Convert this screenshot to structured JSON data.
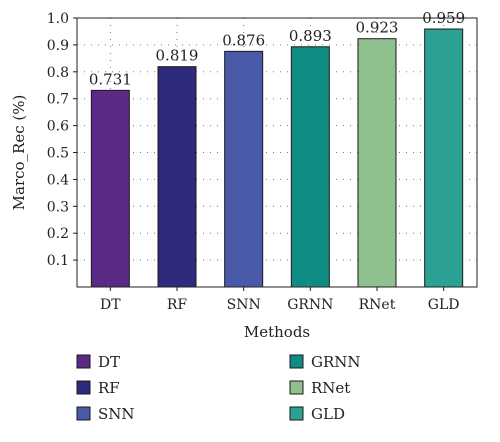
{
  "chart_data": {
    "type": "bar",
    "categories": [
      "DT",
      "RF",
      "SNN",
      "GRNN",
      "RNet",
      "GLD"
    ],
    "values": [
      0.731,
      0.819,
      0.876,
      0.893,
      0.923,
      0.959
    ],
    "value_labels": [
      "0.731",
      "0.819",
      "0.876",
      "0.893",
      "0.923",
      "0.959"
    ],
    "colors": [
      "#5b2a86",
      "#2e2a7c",
      "#4a59a8",
      "#0f8c84",
      "#8fc18e",
      "#2aa193"
    ],
    "xlabel": "Methods",
    "ylabel": "Marco_Rec (%)",
    "ylim": [
      0,
      1.0
    ],
    "yticks": [
      0.1,
      0.2,
      0.3,
      0.4,
      0.5,
      0.6,
      0.7,
      0.8,
      0.9,
      1.0
    ],
    "ytick_labels": [
      "0.1",
      "0.2",
      "0.3",
      "0.4",
      "0.5",
      "0.6",
      "0.7",
      "0.8",
      "0.9",
      "1.0"
    ],
    "grid": true,
    "legend": {
      "placement": "bottom",
      "entries": [
        "DT",
        "RF",
        "SNN",
        "GRNN",
        "RNet",
        "GLD"
      ]
    }
  }
}
